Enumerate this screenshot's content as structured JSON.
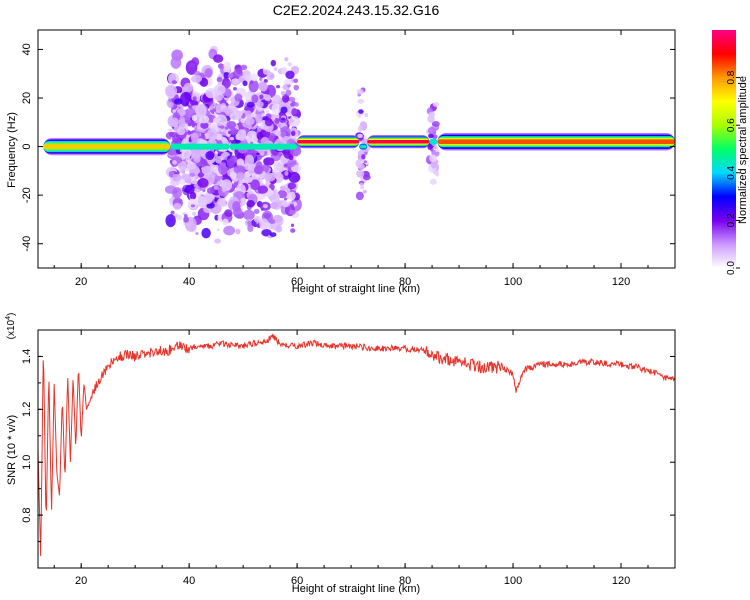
{
  "title": "C2E2.2024.243.15.32.G16",
  "chart_data": [
    {
      "type": "heatmap",
      "xlabel": "Height of straight line (km)",
      "ylabel": "Frequency (Hz)",
      "xlim": [
        12,
        130
      ],
      "ylim": [
        -50,
        48
      ],
      "xticks": [
        20,
        40,
        60,
        80,
        100,
        120
      ],
      "yticks": [
        -40,
        -20,
        0,
        20,
        40
      ],
      "colorbar": {
        "label": "Normalized spectral amplitude",
        "range": [
          0,
          1
        ],
        "ticks": [
          "0.0",
          "0.2",
          "0.4",
          "0.6",
          "0.8"
        ],
        "colors": [
          "#ffffff",
          "#cc99ff",
          "#7700ee",
          "#0000ff",
          "#00d8ff",
          "#00ff66",
          "#aaff00",
          "#ffff00",
          "#ff9900",
          "#ff0000",
          "#ff0088"
        ]
      },
      "segments": [
        {
          "x": [
            13,
            36.5
          ],
          "freq": 0,
          "amplitude": 0.75,
          "width_hz": 4
        },
        {
          "x": [
            36.5,
            47.5
          ],
          "freq": 0,
          "amplitude": 0.25,
          "width_hz": 80
        },
        {
          "x": [
            47.5,
            60
          ],
          "freq": 0,
          "amplitude": 0.25,
          "width_hz": 76
        },
        {
          "x": [
            60,
            71.5
          ],
          "freq": 2,
          "amplitude": 0.95,
          "width_hz": 3
        },
        {
          "x": [
            71.5,
            73
          ],
          "freq": 0,
          "amplitude": 0.15,
          "width_hz": 55
        },
        {
          "x": [
            73,
            84.5
          ],
          "freq": 2,
          "amplitude": 0.95,
          "width_hz": 3
        },
        {
          "x": [
            84.5,
            86
          ],
          "freq": 2,
          "amplitude": 0.2,
          "width_hz": 40
        },
        {
          "x": [
            86,
            130
          ],
          "freq": 2,
          "amplitude": 0.85,
          "width_hz": 4
        }
      ]
    },
    {
      "type": "line",
      "xlabel": "Height of straight line (km)",
      "ylabel": "SNR (10 * v/v)",
      "multiplier": "(x10^4)",
      "xlim": [
        12,
        130
      ],
      "ylim": [
        0.6,
        1.5
      ],
      "xticks": [
        20,
        40,
        60,
        80,
        100,
        120
      ],
      "yticks": [
        "0.8",
        "1.0",
        "1.2",
        "1.4"
      ],
      "color": "#e8332a",
      "series": [
        {
          "x": [
            12,
            12.5,
            13,
            13.5,
            14,
            14.5,
            15,
            15.5,
            16,
            16.5,
            17,
            17.5,
            18,
            18.5,
            19,
            19.5,
            20,
            20.5,
            21,
            22,
            23,
            24,
            25,
            26,
            27,
            28,
            29,
            30,
            32,
            34,
            36,
            38,
            40,
            42,
            44,
            46,
            48,
            50,
            52,
            54,
            55.5,
            57,
            60,
            63,
            66,
            70,
            75,
            80,
            84,
            86,
            88,
            90,
            92,
            95,
            98,
            100,
            100.5,
            102,
            105,
            110,
            115,
            120,
            123,
            126,
            128,
            130
          ],
          "y": [
            1.05,
            0.63,
            1.45,
            0.75,
            1.35,
            0.8,
            1.3,
            0.95,
            0.87,
            1.25,
            0.93,
            1.33,
            1.0,
            1.32,
            1.05,
            1.37,
            1.08,
            1.3,
            1.2,
            1.25,
            1.3,
            1.33,
            1.36,
            1.38,
            1.4,
            1.4,
            1.41,
            1.4,
            1.41,
            1.42,
            1.42,
            1.44,
            1.43,
            1.44,
            1.44,
            1.45,
            1.44,
            1.44,
            1.45,
            1.45,
            1.48,
            1.44,
            1.44,
            1.45,
            1.44,
            1.44,
            1.43,
            1.43,
            1.42,
            1.4,
            1.39,
            1.38,
            1.37,
            1.36,
            1.36,
            1.33,
            1.27,
            1.35,
            1.37,
            1.37,
            1.38,
            1.37,
            1.36,
            1.34,
            1.32,
            1.31
          ]
        }
      ]
    }
  ]
}
